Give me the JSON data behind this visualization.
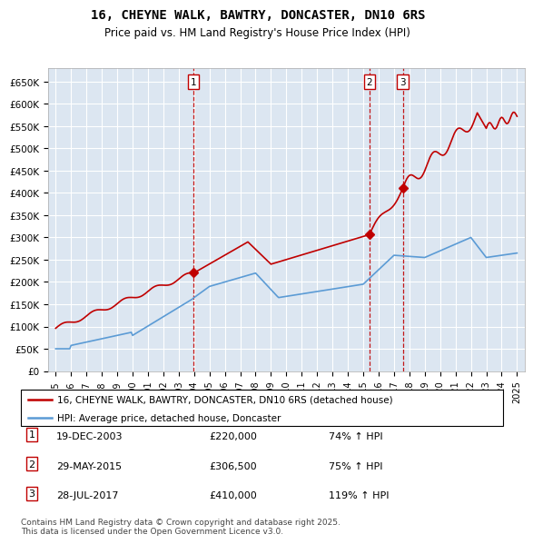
{
  "title": "16, CHEYNE WALK, BAWTRY, DONCASTER, DN10 6RS",
  "subtitle": "Price paid vs. HM Land Registry's House Price Index (HPI)",
  "legend_line1": "16, CHEYNE WALK, BAWTRY, DONCASTER, DN10 6RS (detached house)",
  "legend_line2": "HPI: Average price, detached house, Doncaster",
  "footnote": "Contains HM Land Registry data © Crown copyright and database right 2025.\nThis data is licensed under the Open Government Licence v3.0.",
  "sales": [
    {
      "num": 1,
      "date": "19-DEC-2003",
      "price": 220000,
      "hpi_pct": "74%",
      "date_x": 2003.97
    },
    {
      "num": 2,
      "date": "29-MAY-2015",
      "price": 306500,
      "hpi_pct": "75%",
      "date_x": 2015.41
    },
    {
      "num": 3,
      "date": "28-JUL-2017",
      "price": 410000,
      "hpi_pct": "119%",
      "date_x": 2017.57
    }
  ],
  "hpi_color": "#5b9bd5",
  "price_color": "#c00000",
  "marker_color": "#c00000",
  "dashed_color": "#c00000",
  "bg_color": "#dce6f1",
  "ylim": [
    0,
    680000
  ],
  "xlim": [
    1994.5,
    2025.5
  ],
  "yticks": [
    0,
    50000,
    100000,
    150000,
    200000,
    250000,
    300000,
    350000,
    400000,
    450000,
    500000,
    550000,
    600000,
    650000
  ],
  "ytick_labels": [
    "£0",
    "£50K",
    "£100K",
    "£150K",
    "£200K",
    "£250K",
    "£300K",
    "£350K",
    "£400K",
    "£450K",
    "£500K",
    "£550K",
    "£600K",
    "£650K"
  ],
  "xticks": [
    1995,
    1996,
    1997,
    1998,
    1999,
    2000,
    2001,
    2002,
    2003,
    2004,
    2005,
    2006,
    2007,
    2008,
    2009,
    2010,
    2011,
    2012,
    2013,
    2014,
    2015,
    2016,
    2017,
    2018,
    2019,
    2020,
    2021,
    2022,
    2023,
    2024,
    2025
  ]
}
